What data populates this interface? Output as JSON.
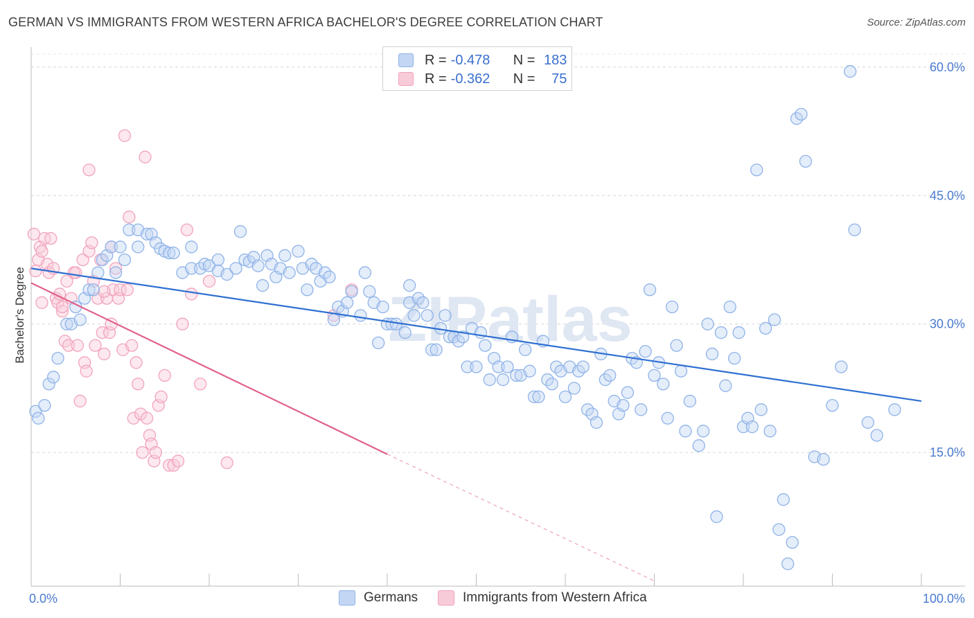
{
  "title": "GERMAN VS IMMIGRANTS FROM WESTERN AFRICA BACHELOR'S DEGREE CORRELATION CHART",
  "source": "Source: ZipAtlas.com",
  "watermark": "ZIPatlas",
  "colors": {
    "blue": "#8fb3e8",
    "blue_line": "#2e6fd1",
    "pink": "#f2a3bc",
    "pink_line": "#e0608a"
  },
  "legend": {
    "rows": [
      {
        "r_label": "R =",
        "r_value": "-0.478",
        "n_label": "N =",
        "n_value": "183"
      },
      {
        "r_label": "R =",
        "r_value": "-0.362",
        "n_label": "N =",
        "n_value": "75"
      }
    ]
  },
  "bottom_legend": {
    "series1": "Germans",
    "series2": "Immigrants from Western Africa"
  },
  "chart_data": {
    "type": "scatter",
    "title": "GERMAN VS IMMIGRANTS FROM WESTERN AFRICA BACHELOR'S DEGREE CORRELATION CHART",
    "xlabel": "",
    "ylabel": "Bachelor's Degree",
    "xlim": [
      0,
      100
    ],
    "ylim": [
      0,
      60
    ],
    "x_tick_labels": [
      "0.0%",
      "100.0%"
    ],
    "y_ticks": [
      15,
      30,
      45,
      60
    ],
    "y_tick_labels": [
      "15.0%",
      "30.0%",
      "45.0%",
      "60.0%"
    ],
    "series": [
      {
        "name": "Germans",
        "trend": {
          "x0": 0,
          "y0": 36.5,
          "x1": 100,
          "y1": 21.0
        },
        "points": [
          [
            0.5,
            19.8
          ],
          [
            0.8,
            19.0
          ],
          [
            1.5,
            20.5
          ],
          [
            2,
            23
          ],
          [
            2.5,
            23.8
          ],
          [
            3,
            26
          ],
          [
            4,
            30
          ],
          [
            4.5,
            30
          ],
          [
            5,
            32
          ],
          [
            5.5,
            30.5
          ],
          [
            6,
            33
          ],
          [
            6.5,
            34
          ],
          [
            7,
            34
          ],
          [
            7.5,
            36
          ],
          [
            8,
            37.5
          ],
          [
            8.5,
            38
          ],
          [
            9,
            39
          ],
          [
            9.5,
            36
          ],
          [
            10,
            39
          ],
          [
            10.5,
            37.5
          ],
          [
            11,
            41
          ],
          [
            12,
            41
          ],
          [
            12,
            39
          ],
          [
            13,
            40.5
          ],
          [
            13.5,
            40.5
          ],
          [
            14,
            39.5
          ],
          [
            14.5,
            38.8
          ],
          [
            15,
            38.5
          ],
          [
            15.5,
            38.3
          ],
          [
            16,
            38.3
          ],
          [
            17,
            36
          ],
          [
            18,
            39
          ],
          [
            18,
            36.5
          ],
          [
            19,
            36.5
          ],
          [
            19.5,
            37
          ],
          [
            20,
            36.8
          ],
          [
            21,
            37.5
          ],
          [
            21,
            36.2
          ],
          [
            22,
            35.8
          ],
          [
            23,
            36.5
          ],
          [
            23.5,
            40.8
          ],
          [
            24,
            37.5
          ],
          [
            24.5,
            37.3
          ],
          [
            25,
            37.8
          ],
          [
            25.5,
            36.8
          ],
          [
            26,
            34.5
          ],
          [
            26.5,
            38
          ],
          [
            27,
            37
          ],
          [
            27.5,
            35.5
          ],
          [
            28,
            36.5
          ],
          [
            28.5,
            38
          ],
          [
            29,
            36
          ],
          [
            30,
            38.5
          ],
          [
            30.5,
            36.5
          ],
          [
            31,
            34
          ],
          [
            31.5,
            37
          ],
          [
            32,
            36.5
          ],
          [
            32.5,
            35
          ],
          [
            33,
            36
          ],
          [
            33.5,
            35.5
          ],
          [
            34,
            30.5
          ],
          [
            34.5,
            32
          ],
          [
            35,
            31.5
          ],
          [
            35.5,
            32.5
          ],
          [
            36,
            33.8
          ],
          [
            37,
            31
          ],
          [
            37.5,
            36
          ],
          [
            38,
            33.8
          ],
          [
            38.5,
            32.5
          ],
          [
            39,
            27.8
          ],
          [
            39.5,
            32
          ],
          [
            40,
            30
          ],
          [
            40.5,
            30
          ],
          [
            41,
            30
          ],
          [
            42,
            29
          ],
          [
            42.5,
            32.5
          ],
          [
            42.5,
            34.5
          ],
          [
            43,
            31
          ],
          [
            43.5,
            33
          ],
          [
            44,
            32.5
          ],
          [
            44.5,
            31
          ],
          [
            45,
            27
          ],
          [
            45.5,
            27
          ],
          [
            46,
            29.5
          ],
          [
            46.5,
            31
          ],
          [
            47,
            28.5
          ],
          [
            47.5,
            28.5
          ],
          [
            48,
            28
          ],
          [
            48.5,
            28.5
          ],
          [
            49,
            25
          ],
          [
            49.5,
            29.5
          ],
          [
            50,
            25
          ],
          [
            50.5,
            29
          ],
          [
            51,
            27.5
          ],
          [
            51.5,
            23.5
          ],
          [
            52,
            26
          ],
          [
            52.5,
            25
          ],
          [
            53,
            23.5
          ],
          [
            53.5,
            25
          ],
          [
            54,
            28.5
          ],
          [
            54.5,
            24
          ],
          [
            55,
            24
          ],
          [
            55.5,
            27
          ],
          [
            56,
            24.5
          ],
          [
            56.5,
            21.5
          ],
          [
            57,
            21.5
          ],
          [
            57.5,
            28
          ],
          [
            58,
            23.5
          ],
          [
            58.5,
            23
          ],
          [
            59,
            25
          ],
          [
            59.5,
            24.5
          ],
          [
            60,
            21.5
          ],
          [
            60.5,
            25
          ],
          [
            61,
            22.5
          ],
          [
            61.5,
            24.5
          ],
          [
            62,
            25
          ],
          [
            62.5,
            20
          ],
          [
            63,
            19.5
          ],
          [
            63.5,
            18.5
          ],
          [
            64,
            26.5
          ],
          [
            64.5,
            23.5
          ],
          [
            65,
            24
          ],
          [
            65.5,
            21
          ],
          [
            66,
            19.5
          ],
          [
            66.5,
            20.5
          ],
          [
            67,
            22
          ],
          [
            67.5,
            26
          ],
          [
            68,
            25.5
          ],
          [
            68.5,
            20
          ],
          [
            69,
            26.8
          ],
          [
            69.5,
            34
          ],
          [
            70,
            24
          ],
          [
            70.5,
            25.5
          ],
          [
            71,
            23
          ],
          [
            71.5,
            19
          ],
          [
            72,
            32
          ],
          [
            72.5,
            27.5
          ],
          [
            73,
            24.5
          ],
          [
            73.5,
            17.5
          ],
          [
            74,
            21
          ],
          [
            75,
            15.8
          ],
          [
            75.5,
            17.5
          ],
          [
            76,
            30
          ],
          [
            76.5,
            26.5
          ],
          [
            77,
            7.5
          ],
          [
            77.5,
            29
          ],
          [
            78,
            22.8
          ],
          [
            78.5,
            32
          ],
          [
            79,
            26
          ],
          [
            79.5,
            29
          ],
          [
            80,
            18
          ],
          [
            80.5,
            19
          ],
          [
            81,
            18
          ],
          [
            81.5,
            48
          ],
          [
            82,
            20
          ],
          [
            82.5,
            29.5
          ],
          [
            83,
            17.5
          ],
          [
            83.5,
            30.5
          ],
          [
            84,
            6
          ],
          [
            84.5,
            9.5
          ],
          [
            85,
            2
          ],
          [
            85.5,
            4.5
          ],
          [
            86,
            54
          ],
          [
            86.5,
            54.5
          ],
          [
            87,
            49
          ],
          [
            88,
            14.5
          ],
          [
            89,
            14.2
          ],
          [
            90,
            20.5
          ],
          [
            91,
            25
          ],
          [
            92,
            59.5
          ],
          [
            92.5,
            41
          ],
          [
            94,
            18.5
          ],
          [
            95,
            17
          ],
          [
            97,
            20
          ]
        ]
      },
      {
        "name": "Immigrants from Western Africa",
        "trend": {
          "x0": 0,
          "y0": 34.8,
          "x1": 40,
          "y1": 14.8
        },
        "trend_dashed": {
          "x0": 40,
          "y0": 14.8,
          "x1": 70,
          "y1": 0
        },
        "points": [
          [
            0.3,
            40.5
          ],
          [
            0.5,
            36.2
          ],
          [
            0.8,
            37.5
          ],
          [
            1,
            39
          ],
          [
            1.2,
            38.5
          ],
          [
            1.5,
            40
          ],
          [
            1.8,
            37
          ],
          [
            2,
            36
          ],
          [
            2.2,
            40
          ],
          [
            2.5,
            36.5
          ],
          [
            2.8,
            33
          ],
          [
            3,
            32.5
          ],
          [
            3.2,
            33.5
          ],
          [
            3.5,
            31.5
          ],
          [
            3.8,
            28
          ],
          [
            4,
            35
          ],
          [
            4.2,
            27.5
          ],
          [
            4.5,
            33
          ],
          [
            4.8,
            36
          ],
          [
            5,
            36
          ],
          [
            5.2,
            27.5
          ],
          [
            5.5,
            21
          ],
          [
            5.8,
            37.5
          ],
          [
            6,
            25.5
          ],
          [
            6.2,
            24.5
          ],
          [
            6.5,
            38.5
          ],
          [
            6.8,
            39.5
          ],
          [
            7,
            35
          ],
          [
            7.2,
            27.5
          ],
          [
            7.5,
            33
          ],
          [
            7.8,
            37.5
          ],
          [
            8,
            29
          ],
          [
            8.2,
            26.5
          ],
          [
            8.5,
            33
          ],
          [
            8.8,
            29
          ],
          [
            9,
            39
          ],
          [
            9.2,
            34
          ],
          [
            9.5,
            36.5
          ],
          [
            9.8,
            33
          ],
          [
            10,
            34
          ],
          [
            10.3,
            27
          ],
          [
            10.5,
            52
          ],
          [
            10.8,
            34
          ],
          [
            11,
            42.5
          ],
          [
            11.3,
            27.5
          ],
          [
            11.5,
            19
          ],
          [
            11.8,
            25.5
          ],
          [
            12,
            23
          ],
          [
            12.3,
            19.5
          ],
          [
            12.5,
            15
          ],
          [
            12.8,
            49.5
          ],
          [
            13,
            19
          ],
          [
            13.3,
            17
          ],
          [
            13.5,
            16
          ],
          [
            13.8,
            14
          ],
          [
            14,
            15
          ],
          [
            14.3,
            20.5
          ],
          [
            14.6,
            21.5
          ],
          [
            15,
            24
          ],
          [
            15.5,
            13.5
          ],
          [
            16,
            13.5
          ],
          [
            16.5,
            14
          ],
          [
            17,
            30
          ],
          [
            17.5,
            41
          ],
          [
            18,
            33.5
          ],
          [
            19,
            23
          ],
          [
            20,
            35
          ],
          [
            6.5,
            48
          ],
          [
            8.2,
            33.8
          ],
          [
            9,
            30
          ],
          [
            3.5,
            32
          ],
          [
            1.2,
            32.5
          ],
          [
            22,
            13.8
          ],
          [
            34,
            31
          ],
          [
            36,
            34
          ]
        ]
      }
    ]
  }
}
